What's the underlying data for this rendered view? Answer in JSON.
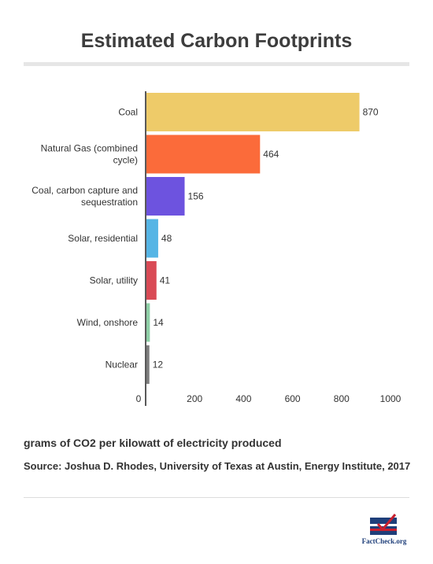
{
  "chart_data": {
    "type": "bar",
    "orientation": "horizontal",
    "title": "Estimated Carbon Footprints",
    "categories": [
      "Coal",
      "Natural Gas (combined cycle)",
      "Coal, carbon capture and sequestration",
      "Solar, residential",
      "Solar, utility",
      "Wind, onshore",
      "Nuclear"
    ],
    "values": [
      870,
      464,
      156,
      48,
      41,
      14,
      12
    ],
    "colors": [
      "#eecb69",
      "#fb6b3a",
      "#6d53df",
      "#56b5e5",
      "#d94a55",
      "#8ecfa6",
      "#7d7d7d"
    ],
    "xlim": [
      0,
      1000
    ],
    "xticks": [
      0,
      200,
      400,
      600,
      800,
      1000
    ],
    "grid": false
  },
  "notes": {
    "units": "grams of CO2 per kilowatt of electricity produced",
    "source": "Source: Joshua D. Rhodes, University of Texas at Austin, Energy Institute, 2017"
  },
  "logo": {
    "text": "FactCheck.org",
    "colors": {
      "navy": "#1f3f7a",
      "red": "#c8202f"
    }
  }
}
